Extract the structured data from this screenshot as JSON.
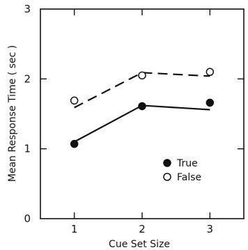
{
  "chart_data": {
    "type": "scatter",
    "xlabel": "Cue Set Size",
    "ylabel": "Mean Response Time ( sec )",
    "xlim": [
      0.5,
      3.5
    ],
    "ylim": [
      0,
      3
    ],
    "x_ticks": [
      "1",
      "2",
      "3"
    ],
    "y_ticks": [
      "0",
      "1",
      "2",
      "3"
    ],
    "x": [
      1,
      2,
      3
    ],
    "series": [
      {
        "name": "True",
        "marker": "filled-circle",
        "values": [
          1.07,
          1.61,
          1.66
        ],
        "fit_line": {
          "style": "solid",
          "values": [
            1.1,
            1.62,
            1.56
          ]
        }
      },
      {
        "name": "False",
        "marker": "open-circle",
        "values": [
          1.69,
          2.05,
          2.1
        ],
        "fit_line": {
          "style": "dashed",
          "values": [
            1.59,
            2.09,
            2.04
          ]
        }
      }
    ],
    "legend_position": "lower-right",
    "grid": false,
    "colors": {
      "ink": "#111111",
      "background": "#ffffff"
    }
  }
}
